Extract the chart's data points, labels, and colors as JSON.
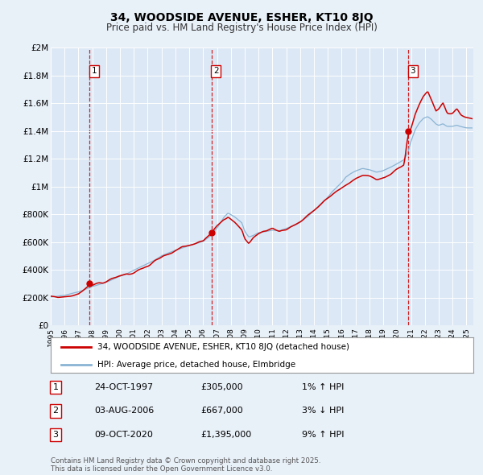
{
  "title": "34, WOODSIDE AVENUE, ESHER, KT10 8JQ",
  "subtitle": "Price paid vs. HM Land Registry's House Price Index (HPI)",
  "bg_color": "#e8f0f8",
  "plot_bg_color": "#dce8f5",
  "grid_color": "#ffffff",
  "red_line_color": "#cc0000",
  "blue_line_color": "#8ab4d4",
  "ylim": [
    0,
    2000000
  ],
  "yticks": [
    0,
    200000,
    400000,
    600000,
    800000,
    1000000,
    1200000,
    1400000,
    1600000,
    1800000,
    2000000
  ],
  "ytick_labels": [
    "£0",
    "£200K",
    "£400K",
    "£600K",
    "£800K",
    "£1M",
    "£1.2M",
    "£1.4M",
    "£1.6M",
    "£1.8M",
    "£2M"
  ],
  "xlim_start": 1995.0,
  "xlim_end": 2025.5,
  "xtick_years": [
    1995,
    1996,
    1997,
    1998,
    1999,
    2000,
    2001,
    2002,
    2003,
    2004,
    2005,
    2006,
    2007,
    2008,
    2009,
    2010,
    2011,
    2012,
    2013,
    2014,
    2015,
    2016,
    2017,
    2018,
    2019,
    2020,
    2021,
    2022,
    2023,
    2024,
    2025
  ],
  "sale_dates": [
    1997.81,
    2006.59,
    2020.78
  ],
  "sale_prices": [
    305000,
    667000,
    1395000
  ],
  "sale_labels": [
    "1",
    "2",
    "3"
  ],
  "legend_red": "34, WOODSIDE AVENUE, ESHER, KT10 8JQ (detached house)",
  "legend_blue": "HPI: Average price, detached house, Elmbridge",
  "table_data": [
    {
      "num": "1",
      "date": "24-OCT-1997",
      "price": "£305,000",
      "hpi": "1% ↑ HPI"
    },
    {
      "num": "2",
      "date": "03-AUG-2006",
      "price": "£667,000",
      "hpi": "3% ↓ HPI"
    },
    {
      "num": "3",
      "date": "09-OCT-2020",
      "price": "£1,395,000",
      "hpi": "9% ↑ HPI"
    }
  ],
  "footer": "Contains HM Land Registry data © Crown copyright and database right 2025.\nThis data is licensed under the Open Government Licence v3.0."
}
